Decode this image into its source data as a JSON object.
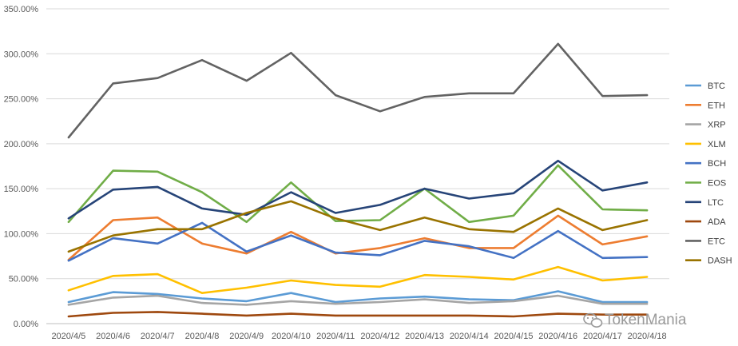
{
  "chart_data": {
    "type": "line",
    "title": "",
    "xlabel": "",
    "ylabel": "",
    "ylim": [
      0,
      350
    ],
    "y_ticks": [
      "0.00%",
      "50.00%",
      "100.00%",
      "150.00%",
      "200.00%",
      "250.00%",
      "300.00%",
      "350.00%"
    ],
    "categories": [
      "2020/4/5",
      "2020/4/6",
      "2020/4/7",
      "2020/4/8",
      "2020/4/9",
      "2020/4/10",
      "2020/4/11",
      "2020/4/12",
      "2020/4/13",
      "2020/4/14",
      "2020/4/15",
      "2020/4/16",
      "2020/4/17",
      "2020/4/18"
    ],
    "grid": true,
    "legend_position": "right",
    "series": [
      {
        "name": "BTC",
        "color": "#5b9bd5",
        "values": [
          24,
          35,
          33,
          28,
          25,
          34,
          24,
          28,
          30,
          27,
          26,
          36,
          24,
          24
        ]
      },
      {
        "name": "ETH",
        "color": "#ed7d31",
        "values": [
          71,
          115,
          118,
          89,
          78,
          102,
          78,
          84,
          95,
          84,
          84,
          120,
          88,
          97
        ]
      },
      {
        "name": "XRP",
        "color": "#a5a5a5",
        "values": [
          21,
          29,
          31,
          23,
          21,
          25,
          22,
          24,
          27,
          23,
          25,
          31,
          22,
          22
        ]
      },
      {
        "name": "XLM",
        "color": "#ffc000",
        "values": [
          37,
          53,
          55,
          34,
          40,
          48,
          43,
          41,
          54,
          52,
          49,
          63,
          48,
          52
        ]
      },
      {
        "name": "BCH",
        "color": "#4472c4",
        "values": [
          70,
          95,
          89,
          112,
          80,
          98,
          79,
          76,
          92,
          86,
          73,
          103,
          73,
          74
        ]
      },
      {
        "name": "EOS",
        "color": "#70ad47",
        "values": [
          113,
          170,
          169,
          146,
          113,
          157,
          114,
          115,
          150,
          113,
          120,
          176,
          127,
          126
        ]
      },
      {
        "name": "LTC",
        "color": "#264478",
        "values": [
          117,
          149,
          152,
          128,
          121,
          146,
          123,
          132,
          150,
          139,
          145,
          181,
          148,
          157
        ]
      },
      {
        "name": "ADA",
        "color": "#9e480e",
        "values": [
          8,
          12,
          13,
          11,
          9,
          11,
          9,
          9,
          9,
          9,
          8,
          11,
          10,
          10
        ]
      },
      {
        "name": "ETC",
        "color": "#636363",
        "values": [
          207,
          267,
          273,
          293,
          270,
          301,
          254,
          236,
          252,
          256,
          256,
          311,
          253,
          254
        ]
      },
      {
        "name": "DASH",
        "color": "#997300",
        "values": [
          80,
          98,
          105,
          105,
          123,
          136,
          117,
          104,
          118,
          105,
          102,
          128,
          104,
          115
        ]
      }
    ]
  },
  "watermark": {
    "text": "TokenMania",
    "icon": "wechat-icon"
  }
}
